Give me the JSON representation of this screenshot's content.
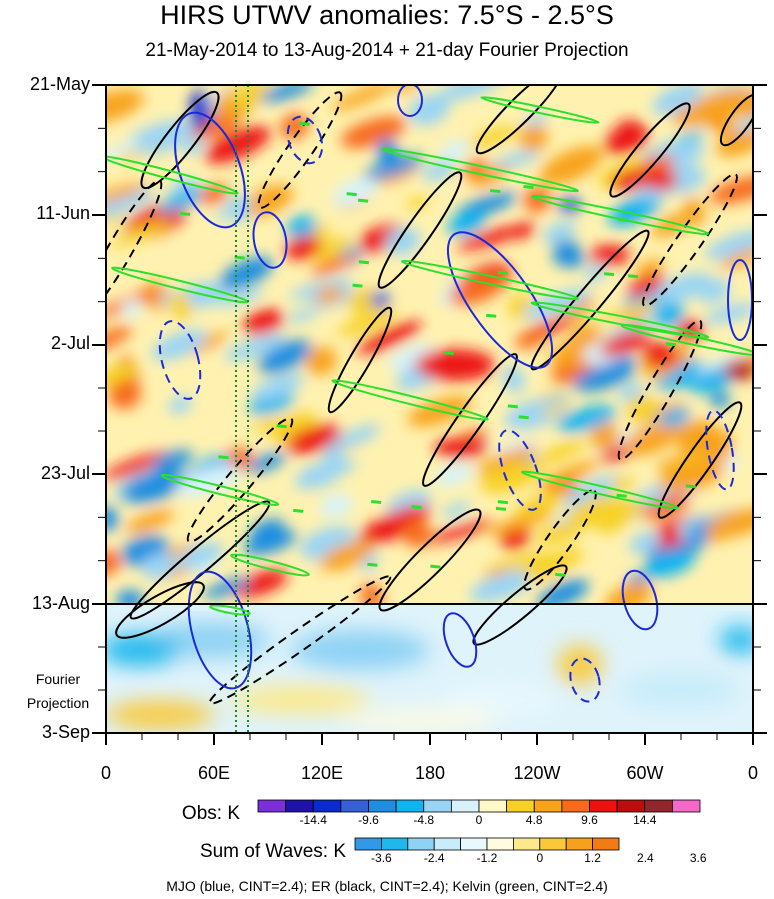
{
  "title": "HIRS UTWV anomalies: 7.5°S - 2.5°S",
  "subtitle": "21-May-2014 to 13-Aug-2014 + 21-day Fourier Projection",
  "chart_data": {
    "type": "heatmap",
    "title": "HIRS UTWV anomalies: 7.5°S - 2.5°S",
    "subtitle": "21-May-2014 to 13-Aug-2014 + 21-day Fourier Projection",
    "x_ticks": [
      "0",
      "60E",
      "120E",
      "180",
      "120W",
      "60W",
      "0"
    ],
    "y_ticks": [
      "21-May",
      "11-Jun",
      "2-Jul",
      "23-Jul",
      "13-Aug",
      "3-Sep"
    ],
    "projection_label": [
      "Fourier",
      "Projection"
    ],
    "projection_start": "13-Aug",
    "obs_colorbar": {
      "name": "Obs: K",
      "ticks": [
        "-14.4",
        "-9.6",
        "-4.8",
        "0",
        "4.8",
        "9.6",
        "14.4"
      ],
      "colors": [
        "#7b2fd8",
        "#1e12a8",
        "#0a2bc9",
        "#3660d8",
        "#1f8ee0",
        "#0fb4f0",
        "#9ad4f5",
        "#d7f2fa",
        "#fff9c8",
        "#f7d126",
        "#f8a31a",
        "#f76b1b",
        "#ec1212",
        "#b80e0e",
        "#93262c",
        "#f468c8"
      ]
    },
    "waves_colorbar": {
      "name": "Sum of Waves: K",
      "ticks": [
        "-3.6",
        "-2.4",
        "-1.2",
        "0",
        "1.2",
        "2.4",
        "3.6"
      ],
      "colors": [
        "#3199e8",
        "#1fb8ec",
        "#8ed2f4",
        "#c8ecfa",
        "#e8f8fd",
        "#fffbe0",
        "#fde98a",
        "#f9c93a",
        "#f7a01c",
        "#f47a14"
      ]
    },
    "contours": [
      {
        "name": "MJO",
        "color": "blue",
        "cint": 2.4
      },
      {
        "name": "ER",
        "color": "black",
        "cint": 2.4
      },
      {
        "name": "Kelvin",
        "color": "green",
        "cint": 2.4
      }
    ]
  },
  "footer": "MJO (blue, CINT=2.4); ER (black, CINT=2.4); Kelvin (green, CINT=2.4)"
}
